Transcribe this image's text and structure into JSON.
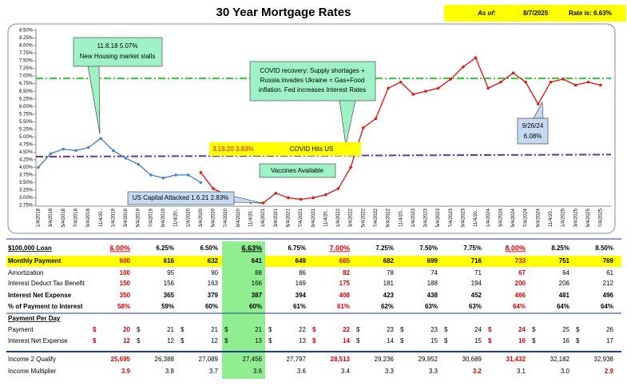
{
  "header": {
    "title": "30 Year Mortgage Rates",
    "as_of_label": "As of:",
    "as_of_date": "8/7/2025",
    "rate_label": "Rate is: 6.63%"
  },
  "chart_data": {
    "type": "line",
    "categories": [
      "1/4/2018",
      "3/4/2018",
      "5/4/2018",
      "7/4/2018",
      "9/4/2018",
      "11/4/20..",
      "1/4/2019",
      "3/4/2019",
      "5/4/2019",
      "7/4/2019",
      "9/4/2019",
      "11/4/20..",
      "1/4/2020",
      "3/4/2020",
      "5/4/2020",
      "7/4/2020",
      "9/4/2020",
      "11/4/20..",
      "1/4/2021",
      "3/4/2021",
      "5/4/2021",
      "7/4/2021",
      "9/4/2021",
      "11/4/20..",
      "1/4/2022",
      "3/4/2022",
      "5/4/2022",
      "7/4/2022",
      "9/4/2022",
      "11/4/20..",
      "1/4/2023",
      "3/4/2023",
      "5/4/2023",
      "7/4/2023",
      "9/4/2023",
      "11/4/20..",
      "1/4/2024",
      "3/4/2024",
      "5/4/2024",
      "7/4/2024",
      "9/4/2024",
      "11/4/20..",
      "1/4/2025",
      "3/4/2025",
      "5/4/2025",
      "7/4/2025"
    ],
    "series": [
      {
        "color": "#4a86c8",
        "values": [
          4.0,
          4.45,
          4.6,
          4.55,
          4.65,
          4.95,
          4.55,
          4.3,
          4.1,
          3.75,
          3.65,
          3.75,
          3.75,
          3.5,
          null,
          null,
          null,
          null,
          null,
          null,
          null,
          null,
          null,
          null,
          null,
          null,
          null,
          null,
          null,
          null,
          null,
          null,
          null,
          null,
          null,
          null,
          null,
          null,
          null,
          null,
          null,
          null,
          null,
          null,
          null,
          null
        ]
      },
      {
        "color": "#e31a1a",
        "values": [
          null,
          null,
          null,
          null,
          null,
          null,
          null,
          null,
          null,
          null,
          null,
          null,
          null,
          3.83,
          3.3,
          3.1,
          2.95,
          2.85,
          2.83,
          3.15,
          3.0,
          2.95,
          3.0,
          3.1,
          3.3,
          4.0,
          5.3,
          5.6,
          6.6,
          6.8,
          6.4,
          6.5,
          6.6,
          6.9,
          7.3,
          7.6,
          6.6,
          6.8,
          7.1,
          6.8,
          6.08,
          6.8,
          6.9,
          6.7,
          6.8,
          6.7
        ]
      }
    ],
    "ylim": [
      2.75,
      8.5
    ],
    "yticks": [
      {
        "value": 2.75,
        "label": "2.75%"
      },
      {
        "value": 3.0,
        "label": "3.00%"
      },
      {
        "value": 3.25,
        "label": "3.25%"
      },
      {
        "value": 3.5,
        "label": "3.50%"
      },
      {
        "value": 3.75,
        "label": "3.75%"
      },
      {
        "value": 4.0,
        "label": "4.00%"
      },
      {
        "value": 4.25,
        "label": "4.25%"
      },
      {
        "value": 4.5,
        "label": "4.50%"
      },
      {
        "value": 4.75,
        "label": "4.75%"
      },
      {
        "value": 5.0,
        "label": "5.00%"
      },
      {
        "value": 5.25,
        "label": "5.25%"
      },
      {
        "value": 5.5,
        "label": "5.50%"
      },
      {
        "value": 5.75,
        "label": "5.75%"
      },
      {
        "value": 6.0,
        "label": "6.00%"
      },
      {
        "value": 6.25,
        "label": "6.25%"
      },
      {
        "value": 6.5,
        "label": "6.50%"
      },
      {
        "value": 6.75,
        "label": "6.75%"
      },
      {
        "value": 7.0,
        "label": "7.00%"
      },
      {
        "value": 7.25,
        "label": "7.25%"
      },
      {
        "value": 7.5,
        "label": "7.50%"
      },
      {
        "value": 7.75,
        "label": "7.75%"
      },
      {
        "value": 8.0,
        "label": "8.00%"
      },
      {
        "value": 8.25,
        "label": "8.25%"
      },
      {
        "value": 8.5,
        "label": "8.50%"
      }
    ],
    "grid": false,
    "reference_lines": [
      {
        "color": "#2ecc2e",
        "values": [
          6.92,
          6.92
        ]
      },
      {
        "color": "#7030a0",
        "values": [
          4.35,
          4.42
        ]
      }
    ],
    "annotations": [
      "11.8.18 5.07%",
      "New Housing market stalls",
      "COVID recovery: Supply shortages +",
      "Russia invades Ukraine = Gas+Food",
      "inflation.  Fed increases Interest Rates",
      "3.19.20  3.83%",
      "COVID Hits US",
      "Vaccines Available",
      "US Capital Attacked 1.6.21 2.83%",
      "9/26/24",
      "6.08%"
    ]
  },
  "table": {
    "currency": "$",
    "highlight_column": 3,
    "highlight_color": "#90ee90",
    "section_title": "Payment Per Day",
    "rows": [
      {
        "label": "$100,000 Loan",
        "bold": true,
        "underline": true,
        "red": [
          0,
          5,
          9
        ],
        "cells": [
          "6.00%",
          "6.25%",
          "6.50%",
          "6.63%",
          "6.75%",
          "7.00%",
          "7.25%",
          "7.50%",
          "7.75%",
          "8.00%",
          "8.25%",
          "8.50%"
        ]
      },
      {
        "label": "Monthly Payment",
        "bold": true,
        "fill": "#ffff00",
        "red": [
          0,
          5,
          9
        ],
        "cells": [
          "600",
          "616",
          "632",
          "641",
          "649",
          "665",
          "682",
          "699",
          "716",
          "733",
          "751",
          "769"
        ]
      },
      {
        "label": "Amortization",
        "red": [
          0,
          5,
          9
        ],
        "cells": [
          "100",
          "95",
          "90",
          "88",
          "86",
          "82",
          "78",
          "74",
          "71",
          "67",
          "64",
          "61"
        ]
      },
      {
        "label": "Interest Deduct Tax Benefit",
        "red": [
          0,
          5,
          9
        ],
        "cells": [
          "150",
          "156",
          "163",
          "166",
          "169",
          "175",
          "181",
          "188",
          "194",
          "200",
          "206",
          "212"
        ]
      },
      {
        "label": "Interest Net Expense",
        "bold": true,
        "red": [
          0,
          5,
          9
        ],
        "cells": [
          "350",
          "365",
          "379",
          "387",
          "394",
          "408",
          "423",
          "438",
          "452",
          "466",
          "481",
          "496"
        ]
      },
      {
        "label": "% of Payment to Interest",
        "bold": true,
        "red": [
          0,
          5,
          9
        ],
        "cells": [
          "58%",
          "59%",
          "60%",
          "60%",
          "61%",
          "61%",
          "62%",
          "63%",
          "63%",
          "64%",
          "64%",
          "64%"
        ]
      },
      {
        "label": "Payment",
        "currency": true,
        "red": [
          0,
          5,
          9
        ],
        "cells": [
          "20",
          "21",
          "21",
          "21",
          "22",
          "22",
          "23",
          "23",
          "24",
          "24",
          "25",
          "26"
        ]
      },
      {
        "label": "Interest Net Expense",
        "currency": true,
        "red": [
          0,
          5,
          9
        ],
        "cells": [
          "12",
          "12",
          "12",
          "13",
          "13",
          "14",
          "14",
          "15",
          "15",
          "16",
          "16",
          "17"
        ]
      },
      {
        "label": "Income 2 Qualify",
        "red": [
          0,
          5,
          9
        ],
        "cells": [
          "25,695",
          "26,388",
          "27,089",
          "27,456",
          "27,797",
          "28,513",
          "29,236",
          "29,952",
          "30,689",
          "31,432",
          "32,182",
          "32,938"
        ]
      },
      {
        "label": "Income Multiplier",
        "red": [
          0,
          8,
          11
        ],
        "cells": [
          "3.9",
          "3.8",
          "3.7",
          "3.6",
          "3.6",
          "3.4",
          "3.3",
          "3.3",
          "3.2",
          "3.1",
          "3.0",
          "2.9"
        ]
      }
    ]
  }
}
